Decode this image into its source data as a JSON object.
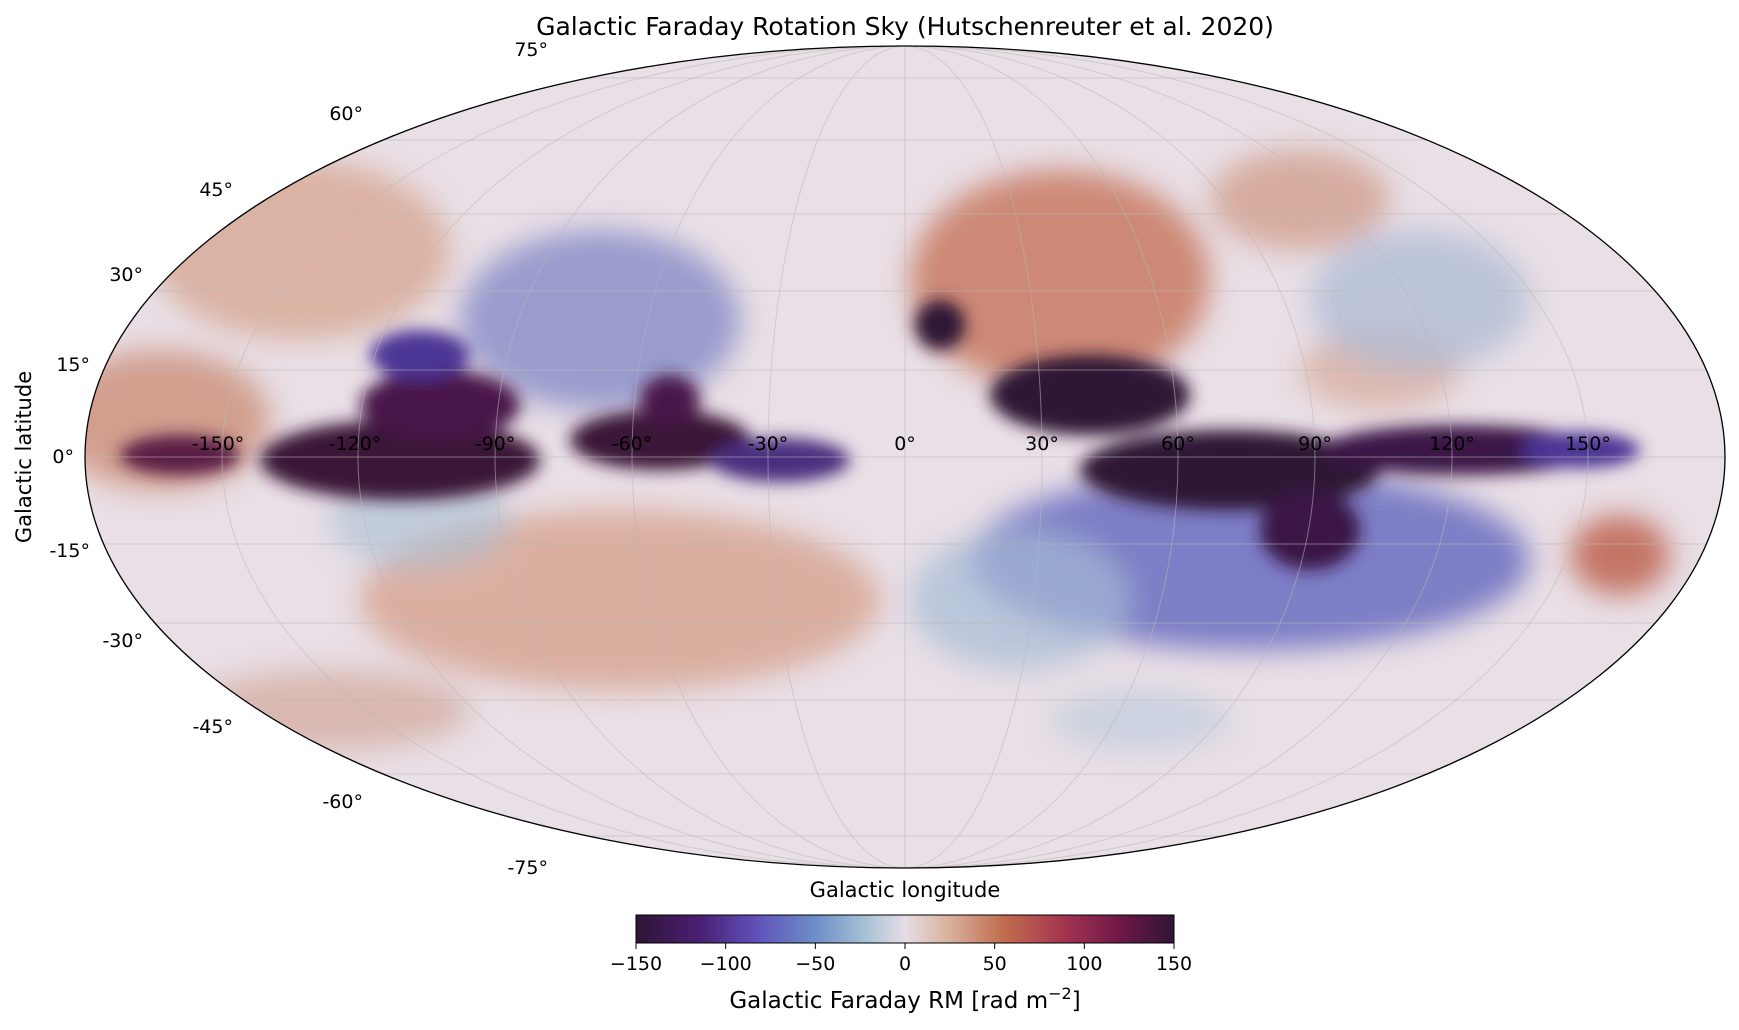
{
  "chart_data": {
    "type": "heatmap",
    "projection": "mollweide",
    "title": "Galactic Faraday Rotation Sky (Hutschenreuter et al. 2020)",
    "xlabel": "Galactic longitude",
    "ylabel": "Galactic latitude",
    "x_ticks": [
      "-150°",
      "-120°",
      "-90°",
      "-60°",
      "-30°",
      "0°",
      "30°",
      "60°",
      "90°",
      "120°",
      "150°"
    ],
    "x_tick_values": [
      -150,
      -120,
      -90,
      -60,
      -30,
      0,
      30,
      60,
      90,
      120,
      150
    ],
    "y_ticks": [
      "75°",
      "60°",
      "45°",
      "30°",
      "15°",
      "0°",
      "-15°",
      "-30°",
      "-45°",
      "-60°",
      "-75°"
    ],
    "y_tick_values": [
      75,
      60,
      45,
      30,
      15,
      0,
      -15,
      -30,
      -45,
      -60,
      -75
    ],
    "grid": true,
    "colorbar": {
      "label_main": "Galactic Faraday RM [rad m",
      "label_sup": "−2",
      "label_end": "]",
      "vmin": -150,
      "vmax": 150,
      "ticks": [
        "−150",
        "−100",
        "−50",
        "0",
        "50",
        "100",
        "150"
      ],
      "tick_values": [
        -150,
        -100,
        -50,
        0,
        50,
        100,
        150
      ],
      "colormap": "twilight_shifted",
      "placement": "bottom"
    }
  }
}
